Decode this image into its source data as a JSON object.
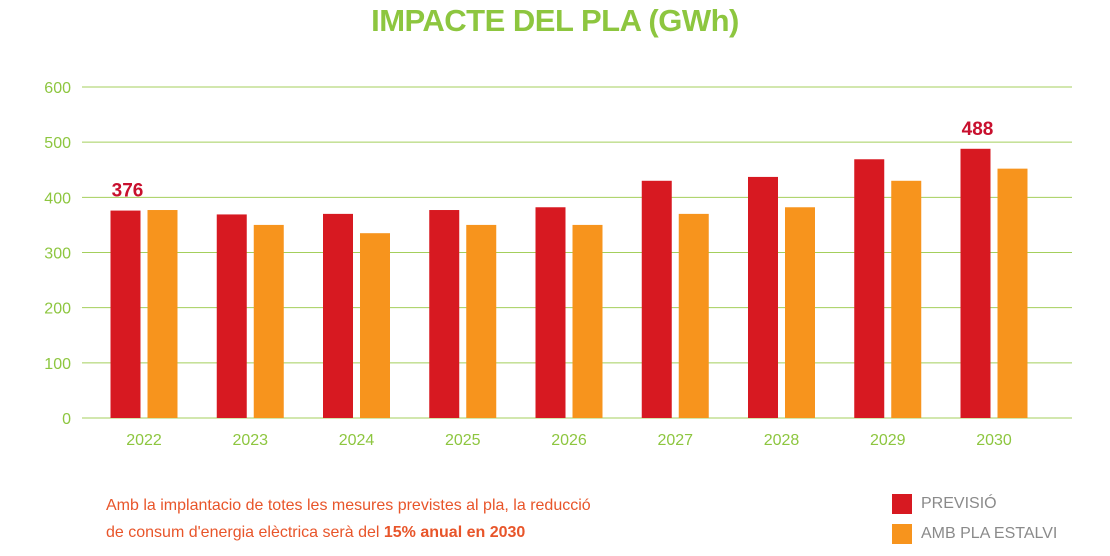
{
  "title": "IMPACTE DEL PLA (GWh)",
  "colors": {
    "title": "#8dc63f",
    "axis": "#8dc63f",
    "grid": "#a4cf5c",
    "series_previsio": "#d71921",
    "series_estalvi": "#f7941d",
    "callout": "#c8102e",
    "note": "#e8552a",
    "legend_text": "#8a8a8a"
  },
  "note": {
    "line1": "Amb la implantacio de totes les mesures previstes al pla, la reducció",
    "line2_prefix": "de consum d'energia elèctrica serà del ",
    "line2_bold": "15% anual en 2030"
  },
  "legend": [
    {
      "label": "PREVISIÓ",
      "color_key": "series_previsio"
    },
    {
      "label": "AMB PLA ESTALVI",
      "color_key": "series_estalvi"
    }
  ],
  "chart_data": {
    "type": "bar",
    "categories": [
      "2022",
      "2023",
      "2024",
      "2025",
      "2026",
      "2027",
      "2028",
      "2029",
      "2030"
    ],
    "series": [
      {
        "name": "PREVISIÓ",
        "values": [
          376,
          369,
          370,
          377,
          382,
          430,
          437,
          469,
          488
        ]
      },
      {
        "name": "AMB PLA ESTALVI",
        "values": [
          377,
          350,
          335,
          350,
          350,
          370,
          382,
          430,
          452
        ]
      }
    ],
    "ylim": [
      0,
      600
    ],
    "yticks": [
      0,
      100,
      200,
      300,
      400,
      500,
      600
    ],
    "grid": true,
    "annotations": [
      {
        "category": "2022",
        "series": "PREVISIÓ",
        "text": "376"
      },
      {
        "category": "2030",
        "series": "PREVISIÓ",
        "text": "488"
      }
    ],
    "legend_position": "bottom-right"
  }
}
